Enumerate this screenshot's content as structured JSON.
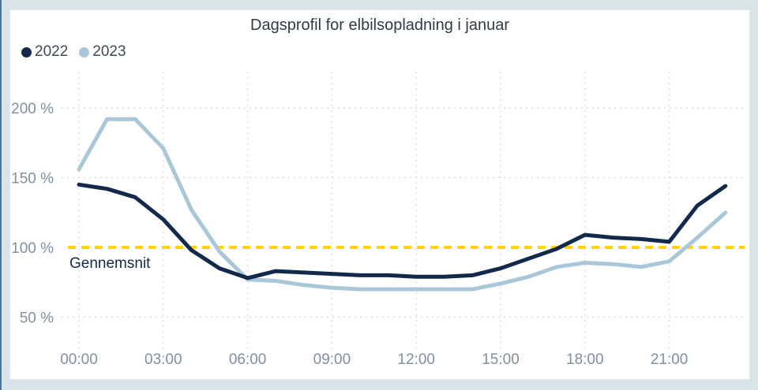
{
  "frame": {
    "outer_bg": "#d9e4ea",
    "card_bg": "#ffffff",
    "edge_color": "#47749c"
  },
  "chart_data": {
    "type": "line",
    "title": "Dagsprofil for elbilsopladning i januar",
    "x_unit": "time-of-day",
    "x_ticks": [
      {
        "hour": 0,
        "label": "00:00"
      },
      {
        "hour": 3,
        "label": "03:00"
      },
      {
        "hour": 6,
        "label": "06:00"
      },
      {
        "hour": 9,
        "label": "09:00"
      },
      {
        "hour": 12,
        "label": "12:00"
      },
      {
        "hour": 15,
        "label": "15:00"
      },
      {
        "hour": 18,
        "label": "18:00"
      },
      {
        "hour": 21,
        "label": "21:00"
      }
    ],
    "y_ticks": [
      {
        "value": 200,
        "label": "200 %"
      },
      {
        "value": 150,
        "label": "150 %"
      },
      {
        "value": 100,
        "label": "100 %"
      },
      {
        "value": 50,
        "label": "50 %"
      }
    ],
    "ylim": [
      40,
      215
    ],
    "grid": "dashed",
    "legend_position": "top-left",
    "reference_line": {
      "value": 100,
      "label": "Gennemsnit",
      "color": "#ffd600",
      "style": "dashed"
    },
    "hours": [
      0,
      1,
      2,
      3,
      4,
      5,
      6,
      7,
      8,
      9,
      10,
      11,
      12,
      13,
      14,
      15,
      16,
      17,
      18,
      19,
      20,
      21,
      22,
      23
    ],
    "series": [
      {
        "name": "2022",
        "color": "#13294b",
        "values": [
          145,
          142,
          136,
          120,
          98,
          85,
          78,
          83,
          82,
          81,
          80,
          80,
          79,
          79,
          80,
          85,
          92,
          99,
          109,
          107,
          106,
          104,
          130,
          144
        ]
      },
      {
        "name": "2023",
        "color": "#a9c7d9",
        "values": [
          156,
          192,
          192,
          171,
          127,
          97,
          77,
          76,
          73,
          71,
          70,
          70,
          70,
          70,
          70,
          74,
          79,
          86,
          89,
          88,
          86,
          90,
          107,
          125
        ]
      }
    ]
  }
}
